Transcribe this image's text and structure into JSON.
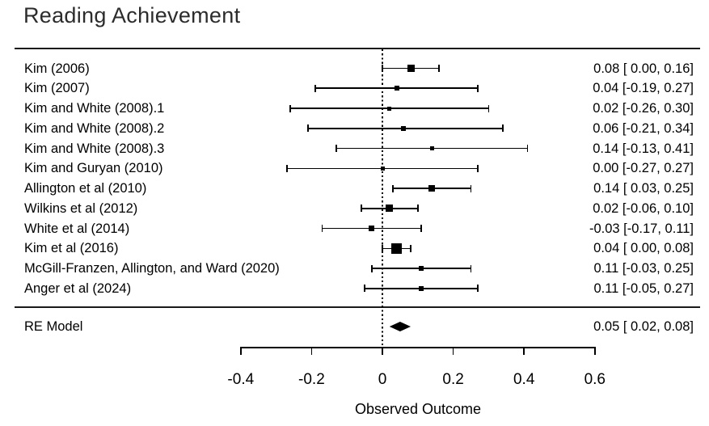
{
  "title": "Reading Achievement",
  "colors": {
    "foreground": "#000000",
    "title_text": "#2c2c2c",
    "background": "#ffffff"
  },
  "chart_data": {
    "type": "forest",
    "title": "Reading Achievement",
    "xlabel": "Observed Outcome",
    "reference_line": 0,
    "axis": {
      "min": -0.4,
      "max": 0.6,
      "ticks": [
        -0.4,
        -0.2,
        0,
        0.2,
        0.4,
        0.6
      ],
      "tick_labels": [
        "-0.4",
        "-0.2",
        "0",
        "0.2",
        "0.4",
        "0.6"
      ]
    },
    "studies": [
      {
        "label": "Kim (2006)",
        "estimate": 0.08,
        "ci_low": 0.0,
        "ci_high": 0.16,
        "annotation": "0.08 [ 0.00, 0.16]",
        "marker_size": 9
      },
      {
        "label": "Kim (2007)",
        "estimate": 0.04,
        "ci_low": -0.19,
        "ci_high": 0.27,
        "annotation": "0.04 [-0.19, 0.27]",
        "marker_size": 6
      },
      {
        "label": "Kim and White (2008).1",
        "estimate": 0.02,
        "ci_low": -0.26,
        "ci_high": 0.3,
        "annotation": "0.02 [-0.26, 0.30]",
        "marker_size": 5
      },
      {
        "label": "Kim and White (2008).2",
        "estimate": 0.06,
        "ci_low": -0.21,
        "ci_high": 0.34,
        "annotation": "0.06 [-0.21, 0.34]",
        "marker_size": 6
      },
      {
        "label": "Kim and White (2008).3",
        "estimate": 0.14,
        "ci_low": -0.13,
        "ci_high": 0.41,
        "annotation": "0.14 [-0.13, 0.41]",
        "marker_size": 5
      },
      {
        "label": "Kim and Guryan (2010)",
        "estimate": 0.0,
        "ci_low": -0.27,
        "ci_high": 0.27,
        "annotation": "0.00 [-0.27, 0.27]",
        "marker_size": 5
      },
      {
        "label": "Allington et al (2010)",
        "estimate": 0.14,
        "ci_low": 0.03,
        "ci_high": 0.25,
        "annotation": "0.14 [ 0.03, 0.25]",
        "marker_size": 8
      },
      {
        "label": "Wilkins et al (2012)",
        "estimate": 0.02,
        "ci_low": -0.06,
        "ci_high": 0.1,
        "annotation": "0.02 [-0.06, 0.10]",
        "marker_size": 9
      },
      {
        "label": "White et al (2014)",
        "estimate": -0.03,
        "ci_low": -0.17,
        "ci_high": 0.11,
        "annotation": "-0.03 [-0.17, 0.11]",
        "marker_size": 7
      },
      {
        "label": "Kim et al (2016)",
        "estimate": 0.04,
        "ci_low": 0.0,
        "ci_high": 0.08,
        "annotation": "0.04 [ 0.00, 0.08]",
        "marker_size": 13
      },
      {
        "label": "McGill-Franzen, Allington, and Ward (2020)",
        "estimate": 0.11,
        "ci_low": -0.03,
        "ci_high": 0.25,
        "annotation": "0.11 [-0.03, 0.25]",
        "marker_size": 6
      },
      {
        "label": "Anger et al (2024)",
        "estimate": 0.11,
        "ci_low": -0.05,
        "ci_high": 0.27,
        "annotation": "0.11 [-0.05, 0.27]",
        "marker_size": 6
      }
    ],
    "summary": {
      "label": "RE Model",
      "estimate": 0.05,
      "ci_low": 0.02,
      "ci_high": 0.08,
      "annotation": "0.05 [ 0.02, 0.08]"
    }
  }
}
